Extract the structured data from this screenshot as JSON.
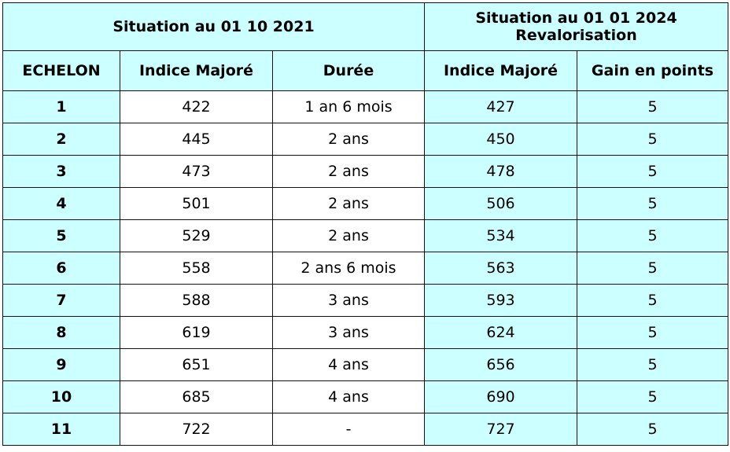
{
  "header": {
    "group_2021": "Situation au 01 10 2021",
    "group_2024_line1": "Situation au 01 01 2024",
    "group_2024_line2": "Revalorisation",
    "columns": [
      "ECHELON",
      "Indice Majoré",
      "Durée",
      "Indice Majoré",
      "Gain en points"
    ]
  },
  "colors": {
    "header_bg": "#ccffff",
    "body_bg": "#ffffff"
  },
  "rows": [
    {
      "echelon": "1",
      "im_2021": "422",
      "duree": "1 an 6 mois",
      "im_2024": "427",
      "gain": "5"
    },
    {
      "echelon": "2",
      "im_2021": "445",
      "duree": "2 ans",
      "im_2024": "450",
      "gain": "5"
    },
    {
      "echelon": "3",
      "im_2021": "473",
      "duree": "2 ans",
      "im_2024": "478",
      "gain": "5"
    },
    {
      "echelon": "4",
      "im_2021": "501",
      "duree": "2 ans",
      "im_2024": "506",
      "gain": "5"
    },
    {
      "echelon": "5",
      "im_2021": "529",
      "duree": "2 ans",
      "im_2024": "534",
      "gain": "5"
    },
    {
      "echelon": "6",
      "im_2021": "558",
      "duree": "2 ans 6 mois",
      "im_2024": "563",
      "gain": "5"
    },
    {
      "echelon": "7",
      "im_2021": "588",
      "duree": "3 ans",
      "im_2024": "593",
      "gain": "5"
    },
    {
      "echelon": "8",
      "im_2021": "619",
      "duree": "3 ans",
      "im_2024": "624",
      "gain": "5"
    },
    {
      "echelon": "9",
      "im_2021": "651",
      "duree": "4 ans",
      "im_2024": "656",
      "gain": "5"
    },
    {
      "echelon": "10",
      "im_2021": "685",
      "duree": "4 ans",
      "im_2024": "690",
      "gain": "5"
    },
    {
      "echelon": "11",
      "im_2021": "722",
      "duree": "-",
      "im_2024": "727",
      "gain": "5"
    }
  ]
}
